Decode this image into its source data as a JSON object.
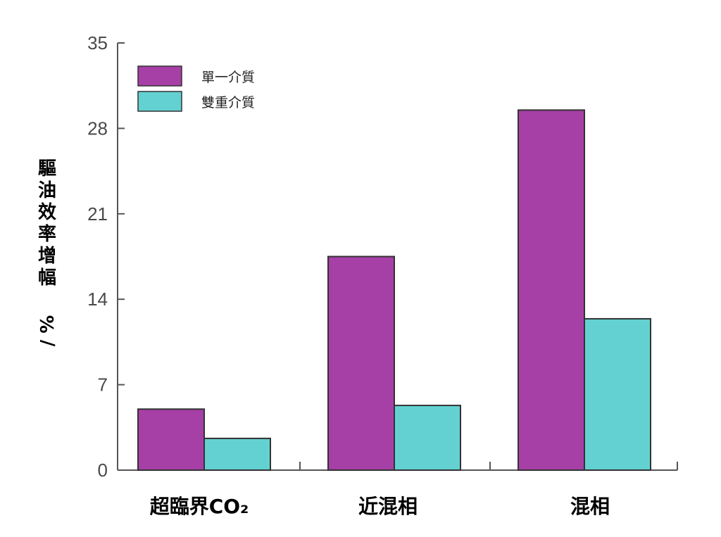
{
  "chart_data": {
    "type": "bar",
    "categories": [
      "超臨界CO₂",
      "近混相",
      "混相"
    ],
    "series": [
      {
        "name": "單一介質",
        "color": "#a63fa6",
        "values": [
          5.0,
          17.5,
          29.5
        ]
      },
      {
        "name": "雙重介質",
        "color": "#63d1d1",
        "values": [
          2.6,
          5.3,
          12.4
        ]
      }
    ],
    "ylabel": "驅油效率增幅 / %",
    "xlabel": "",
    "yticks": [
      0,
      7,
      14,
      21,
      28,
      35
    ],
    "ylim": [
      0,
      35
    ],
    "legend_position": "top-left",
    "grid": false
  }
}
